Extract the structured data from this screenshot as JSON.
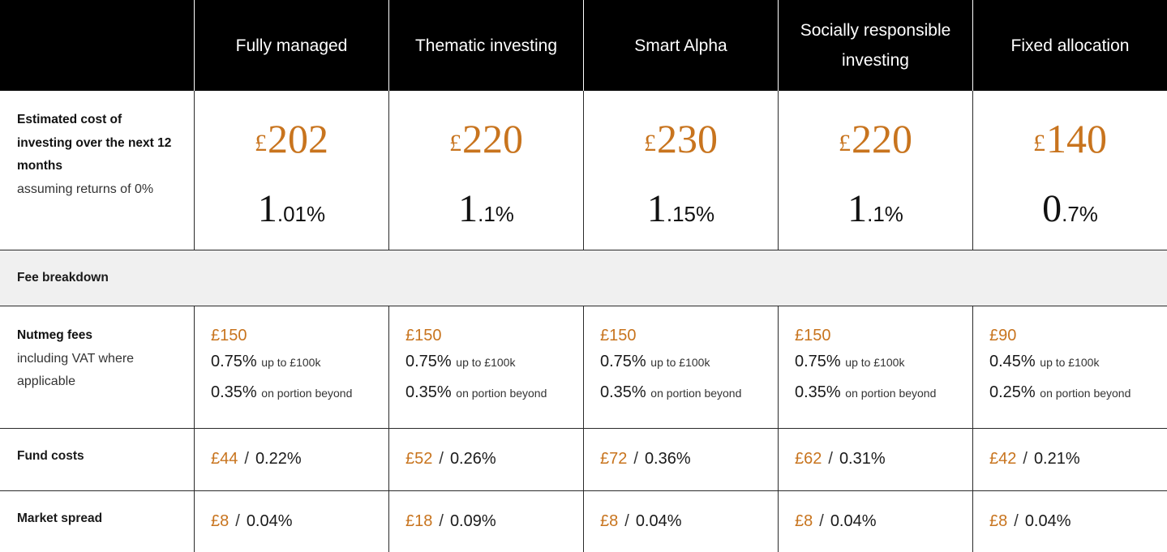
{
  "columns": [
    {
      "name": "Fully managed",
      "cost": "202",
      "pct_whole": "1",
      "pct_frac": ".01%",
      "fee_amount": "£150",
      "fee_rate1": "0.75%",
      "fee_rate2": "0.35%",
      "fund_amount": "£44",
      "fund_pct": "0.22%",
      "spread_amount": "£8",
      "spread_pct": "0.04%"
    },
    {
      "name": "Thematic investing",
      "cost": "220",
      "pct_whole": "1",
      "pct_frac": ".1%",
      "fee_amount": "£150",
      "fee_rate1": "0.75%",
      "fee_rate2": "0.35%",
      "fund_amount": "£52",
      "fund_pct": "0.26%",
      "spread_amount": "£18",
      "spread_pct": "0.09%"
    },
    {
      "name": "Smart Alpha",
      "cost": "230",
      "pct_whole": "1",
      "pct_frac": ".15%",
      "fee_amount": "£150",
      "fee_rate1": "0.75%",
      "fee_rate2": "0.35%",
      "fund_amount": "£72",
      "fund_pct": "0.36%",
      "spread_amount": "£8",
      "spread_pct": "0.04%"
    },
    {
      "name": "Socially responsible investing",
      "cost": "220",
      "pct_whole": "1",
      "pct_frac": ".1%",
      "fee_amount": "£150",
      "fee_rate1": "0.75%",
      "fee_rate2": "0.35%",
      "fund_amount": "£62",
      "fund_pct": "0.31%",
      "spread_amount": "£8",
      "spread_pct": "0.04%"
    },
    {
      "name": "Fixed allocation",
      "cost": "140",
      "pct_whole": "0",
      "pct_frac": ".7%",
      "fee_amount": "£90",
      "fee_rate1": "0.45%",
      "fee_rate2": "0.25%",
      "fund_amount": "£42",
      "fund_pct": "0.21%",
      "spread_amount": "£8",
      "spread_pct": "0.04%"
    }
  ],
  "currency": "£",
  "rows": {
    "estimated_title": "Estimated cost of investing over the next 12 months",
    "estimated_sub": "assuming returns of 0%",
    "fee_breakdown": "Fee breakdown",
    "nutmeg_title": "Nutmeg fees",
    "nutmeg_sub": "including VAT where applicable",
    "rate1_suffix": "up to £100k",
    "rate2_suffix": "on portion beyond",
    "fund_costs": "Fund costs",
    "market_spread": "Market spread",
    "slash": "/"
  },
  "colors": {
    "accent": "#c8741e",
    "header_bg": "#000000",
    "band_bg": "#f0f0f0"
  }
}
